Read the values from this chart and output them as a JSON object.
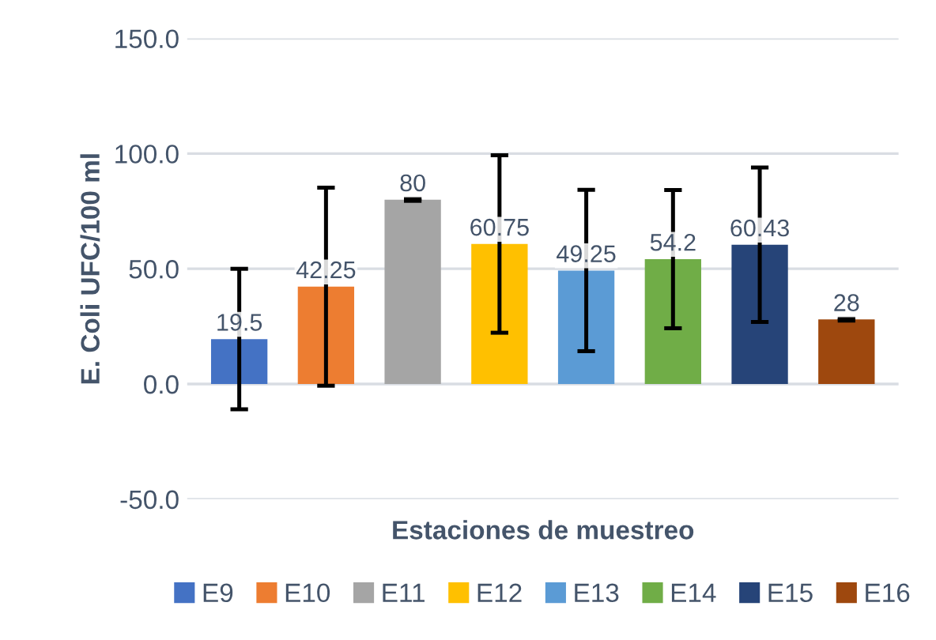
{
  "chart_data": {
    "type": "bar",
    "xlabel": "Estaciones de muestreo",
    "ylabel": "E. Coli UFC/100 ml",
    "categories": [
      null,
      null,
      null,
      null,
      null,
      null,
      null,
      null
    ],
    "series": [
      {
        "name": "E9",
        "color": "#4472c4",
        "values": [
          19.5,
          null,
          null,
          null,
          null,
          null,
          null,
          null
        ],
        "errors": [
          30.5,
          null,
          null,
          null,
          null,
          null,
          null,
          null
        ]
      },
      {
        "name": "E10",
        "color": "#ed7d31",
        "values": [
          null,
          42.25,
          null,
          null,
          null,
          null,
          null,
          null
        ],
        "errors": [
          null,
          43,
          null,
          null,
          null,
          null,
          null,
          null
        ]
      },
      {
        "name": "E11",
        "color": "#a5a5a5",
        "values": [
          null,
          null,
          80,
          null,
          null,
          null,
          null,
          null
        ],
        "errors": [
          null,
          null,
          0.5,
          null,
          null,
          null,
          null,
          null
        ]
      },
      {
        "name": "E12",
        "color": "#ffc000",
        "values": [
          null,
          null,
          null,
          60.75,
          null,
          null,
          null,
          null
        ],
        "errors": [
          null,
          null,
          null,
          38.5,
          null,
          null,
          null,
          null
        ]
      },
      {
        "name": "E13",
        "color": "#5b9bd5",
        "values": [
          null,
          null,
          null,
          null,
          49.25,
          null,
          null,
          null
        ],
        "errors": [
          null,
          null,
          null,
          null,
          35,
          null,
          null,
          null
        ]
      },
      {
        "name": "E14",
        "color": "#70ad47",
        "values": [
          null,
          null,
          null,
          null,
          null,
          54.2,
          null,
          null
        ],
        "errors": [
          null,
          null,
          null,
          null,
          null,
          30,
          null,
          null
        ]
      },
      {
        "name": "E15",
        "color": "#264478",
        "values": [
          null,
          null,
          null,
          null,
          null,
          null,
          60.43,
          null
        ],
        "errors": [
          null,
          null,
          null,
          null,
          null,
          null,
          33.5,
          null
        ]
      },
      {
        "name": "E16",
        "color": "#9e480e",
        "values": [
          null,
          null,
          null,
          null,
          null,
          null,
          null,
          28
        ],
        "errors": [
          null,
          null,
          null,
          null,
          null,
          null,
          null,
          0.5
        ]
      }
    ],
    "ylim": [
      -50,
      150
    ],
    "yticks": [
      {
        "value": -50,
        "label": "-50.0"
      },
      {
        "value": 0,
        "label": "0.0"
      },
      {
        "value": 50,
        "label": "50.0"
      },
      {
        "value": 100,
        "label": "100.0"
      },
      {
        "value": 150,
        "label": "150.0"
      }
    ],
    "grid": "y",
    "legend": "bottom",
    "data_labels": true
  }
}
